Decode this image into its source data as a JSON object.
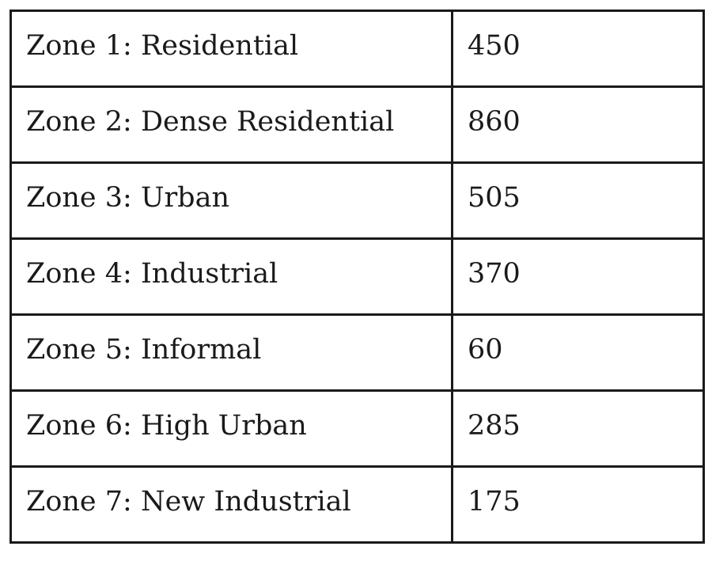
{
  "table": {
    "rows": [
      {
        "zone": "Zone 1: Residential",
        "value": "450"
      },
      {
        "zone": "Zone 2: Dense Residential",
        "value": "860"
      },
      {
        "zone": "Zone 3: Urban",
        "value": "505"
      },
      {
        "zone": "Zone 4: Industrial",
        "value": "370"
      },
      {
        "zone": "Zone 5: Informal",
        "value": "60"
      },
      {
        "zone": "Zone 6: High Urban",
        "value": "285"
      },
      {
        "zone": "Zone 7: New Industrial",
        "value": "175"
      }
    ]
  }
}
